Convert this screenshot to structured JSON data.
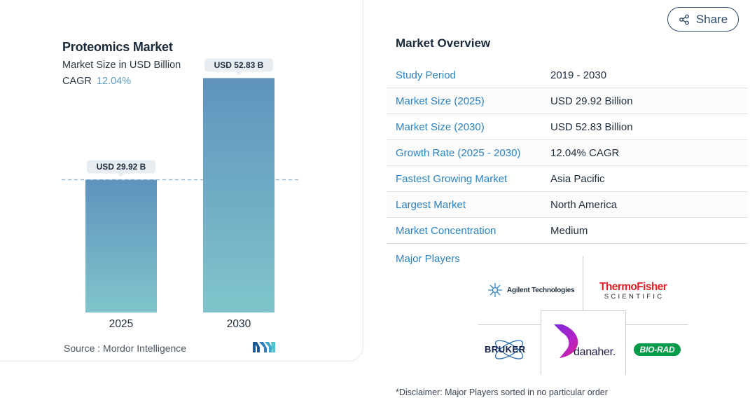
{
  "chart_data": {
    "type": "bar",
    "title": "Proteomics Market",
    "subtitle": "Market Size in USD Billion",
    "cagr_label": "CAGR",
    "cagr_value": "12.04%",
    "categories": [
      "2025",
      "2030"
    ],
    "values": [
      29.92,
      52.83
    ],
    "data_labels": [
      "USD 29.92 B",
      "USD 52.83 B"
    ],
    "xlabel": "",
    "ylabel": "",
    "ylim": [
      0,
      60
    ],
    "grid": false,
    "reference_line": "dashed line at first bar value",
    "colors": {
      "bar_top": "#5f93bd",
      "bar_bottom": "#80c5cb",
      "label_bg": "#e8edf2",
      "dashed_line": "#8fb2cf"
    },
    "source": "Source :  Mordor Intelligence"
  },
  "share": {
    "label": "Share",
    "icon": "share-icon"
  },
  "overview": {
    "title": "Market Overview",
    "rows": [
      {
        "label": "Study Period",
        "value": "2019 - 2030"
      },
      {
        "label": "Market Size (2025)",
        "value": "USD 29.92 Billion"
      },
      {
        "label": "Market Size (2030)",
        "value": "USD 52.83 Billion"
      },
      {
        "label": "Growth Rate (2025 - 2030)",
        "value": "12.04% CAGR"
      },
      {
        "label": "Fastest Growing Market",
        "value": "Asia Pacific"
      },
      {
        "label": "Largest Market",
        "value": "North America"
      },
      {
        "label": "Market Concentration",
        "value": "Medium"
      }
    ],
    "major_players_label": "Major Players",
    "players": {
      "agilent": "Agilent Technologies",
      "thermo_main": "ThermoFisher",
      "thermo_sub": "SCIENTIFIC",
      "danaher": "danaher.",
      "bruker": "BRUKER",
      "biorad": "BIO-RAD"
    },
    "disclaimer": "*Disclaimer: Major Players sorted in no particular order"
  }
}
